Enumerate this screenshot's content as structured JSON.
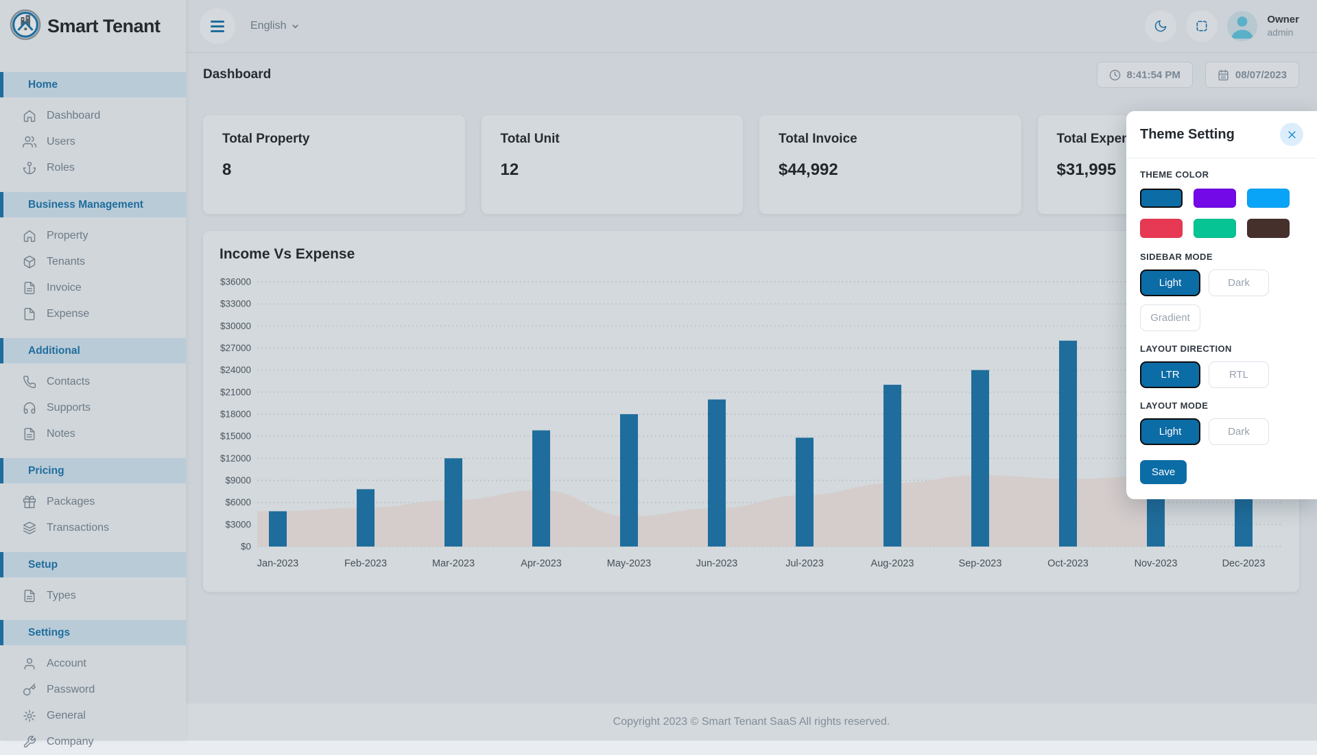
{
  "app": {
    "brand": "Smart Tenant"
  },
  "colors": {
    "brand": "#0c6ca6",
    "sidebar_active_bg": "#d2e5f2",
    "bar_color": "#0c6ca6",
    "area_fill": "#f3e6e2"
  },
  "topbar": {
    "language": "English",
    "user_name": "Owner",
    "user_role": "admin",
    "icons": [
      "menu-icon",
      "chevron-down-icon",
      "moon-icon",
      "fullscreen-icon"
    ]
  },
  "breadcrumb": {
    "title": "Dashboard",
    "time": "8:41:54 PM",
    "date": "08/07/2023"
  },
  "sidebar": {
    "sections": [
      {
        "header": "Home",
        "items": [
          {
            "label": "Dashboard",
            "icon": "home"
          },
          {
            "label": "Users",
            "icon": "users"
          },
          {
            "label": "Roles",
            "icon": "anchor"
          }
        ]
      },
      {
        "header": "Business Management",
        "items": [
          {
            "label": "Property",
            "icon": "home"
          },
          {
            "label": "Tenants",
            "icon": "box"
          },
          {
            "label": "Invoice",
            "icon": "file-text"
          },
          {
            "label": "Expense",
            "icon": "file"
          }
        ]
      },
      {
        "header": "Additional",
        "items": [
          {
            "label": "Contacts",
            "icon": "phone"
          },
          {
            "label": "Supports",
            "icon": "headphones"
          },
          {
            "label": "Notes",
            "icon": "file-text"
          }
        ]
      },
      {
        "header": "Pricing",
        "items": [
          {
            "label": "Packages",
            "icon": "gift"
          },
          {
            "label": "Transactions",
            "icon": "layers"
          }
        ]
      },
      {
        "header": "Setup",
        "items": [
          {
            "label": "Types",
            "icon": "file-text"
          }
        ]
      },
      {
        "header": "Settings",
        "items": [
          {
            "label": "Account",
            "icon": "user"
          },
          {
            "label": "Password",
            "icon": "key"
          },
          {
            "label": "General",
            "icon": "gear"
          },
          {
            "label": "Company",
            "icon": "wrench"
          }
        ]
      }
    ]
  },
  "stats": [
    {
      "title": "Total Property",
      "value": "8"
    },
    {
      "title": "Total Unit",
      "value": "12"
    },
    {
      "title": "Total Invoice",
      "value": "$44,992"
    },
    {
      "title": "Total Expense",
      "value": "$31,995"
    }
  ],
  "chart_data": {
    "type": "bar",
    "title": "Income Vs Expense",
    "categories": [
      "Jan-2023",
      "Feb-2023",
      "Mar-2023",
      "Apr-2023",
      "May-2023",
      "Jun-2023",
      "Jul-2023",
      "Aug-2023",
      "Sep-2023",
      "Oct-2023",
      "Nov-2023",
      "Dec-2023"
    ],
    "series": [
      {
        "name": "Income",
        "type": "bar",
        "values": [
          4800,
          7800,
          12000,
          15800,
          18000,
          20000,
          14800,
          22000,
          24000,
          28000,
          26000,
          30000
        ]
      },
      {
        "name": "Expense",
        "type": "area",
        "values": [
          4800,
          5300,
          6300,
          7700,
          4100,
          5200,
          7000,
          8600,
          9700,
          9200,
          9600,
          null
        ]
      }
    ],
    "ylim": [
      0,
      36000
    ],
    "ytick_step": 3000,
    "ytick_prefix": "$",
    "grid": "horizontal-dotted",
    "legend": "none"
  },
  "theme_panel": {
    "title": "Theme Setting",
    "theme_color": {
      "label": "THEME COLOR",
      "colors": [
        "#0c6ca6",
        "#7209e6",
        "#09a4f7",
        "#e73953",
        "#06c493",
        "#46302c"
      ],
      "selected_index": 0
    },
    "groups": [
      {
        "id": "sidebar-mode",
        "label": "SIDEBAR MODE",
        "options": [
          "Light",
          "Dark",
          "Gradient"
        ],
        "selected": "Light"
      },
      {
        "id": "layout-direction",
        "label": "LAYOUT DIRECTION",
        "options": [
          "LTR",
          "RTL"
        ],
        "selected": "LTR"
      },
      {
        "id": "layout-mode",
        "label": "LAYOUT MODE",
        "options": [
          "Light",
          "Dark"
        ],
        "selected": "Light"
      }
    ],
    "save_label": "Save"
  },
  "footer": {
    "copyright": "Copyright 2023 © Smart Tenant SaaS All rights reserved."
  }
}
